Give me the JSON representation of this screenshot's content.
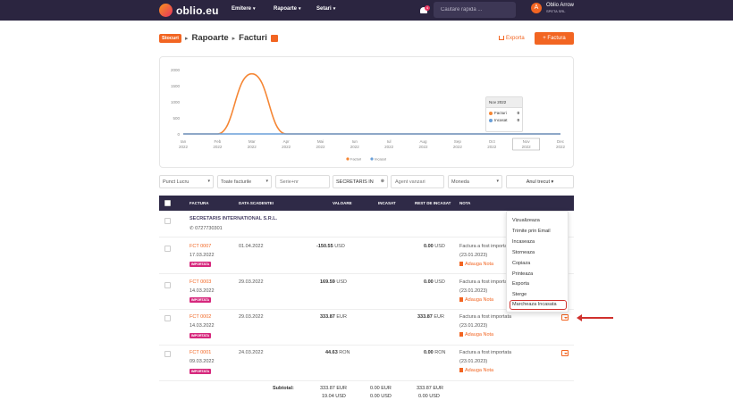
{
  "header": {
    "logo_text": "oblio.eu",
    "nav": [
      {
        "label": "Emitere"
      },
      {
        "label": "Rapoarte"
      },
      {
        "label": "Setari"
      }
    ],
    "notif_count": "4",
    "search_placeholder": "Cautare rapida ...",
    "user_initial": "A",
    "user_name": "Oblio Arrow",
    "user_company": "SPETA SRL"
  },
  "breadcrumb": {
    "badge": "Stocuri",
    "items": [
      "Rapoarte",
      "Facturi"
    ]
  },
  "actions": {
    "export_label": "Exporta",
    "new_label": "+ Factura"
  },
  "chart_data": {
    "type": "line",
    "categories": [
      "Ian 2022",
      "Feb 2022",
      "Mar 2022",
      "Apr 2022",
      "Mai 2022",
      "Iun 2022",
      "Iul 2022",
      "Aug 2022",
      "Sep 2022",
      "Oct 2022",
      "Nov 2022",
      "Dec 2022"
    ],
    "x_top": [
      "Ian",
      "Feb",
      "Mar",
      "Apr",
      "Mai",
      "Iun",
      "Iul",
      "Aug",
      "Sep",
      "Oct",
      "Nov",
      "Dec"
    ],
    "x_bottom": [
      "2022",
      "2022",
      "2022",
      "2022",
      "2022",
      "2022",
      "2022",
      "2022",
      "2022",
      "2022",
      "2022",
      "2022"
    ],
    "yticks": [
      "2000",
      "1500",
      "1000",
      "500",
      "0"
    ],
    "ylim": [
      0,
      2000
    ],
    "series": [
      {
        "name": "Facturi",
        "color": "#f58634",
        "values": [
          0,
          0,
          1870,
          0,
          0,
          0,
          0,
          0,
          0,
          0,
          0,
          0
        ]
      },
      {
        "name": "Incasat",
        "color": "#6a9fd8",
        "values": [
          0,
          0,
          0,
          0,
          0,
          0,
          0,
          0,
          0,
          0,
          0,
          0
        ]
      }
    ],
    "legend_position": "bottom-center",
    "tooltip": {
      "title": "Nov 2022",
      "rows": [
        {
          "name": "Facturi",
          "value": "0"
        },
        {
          "name": "Incasat",
          "value": "0"
        }
      ]
    }
  },
  "filters": {
    "punct": "Punct Lucru",
    "tipuri": "Toate facturile",
    "serie_placeholder": "Serie+nr",
    "client": "SECRETARIS IN",
    "agent_placeholder": "Agent vanzari",
    "moneda": "Moneda",
    "perioada": "Anul trecut"
  },
  "table": {
    "headers": [
      "FACTURA",
      "DATA SCADENTEI",
      "VALOARE",
      "INCASAT",
      "REST DE INCASAT",
      "NOTA"
    ],
    "client_name": "SECRETARIS INTERNATIONAL S.R.L.",
    "client_phone": "0727730301",
    "rows": [
      {
        "number": "FCT 0007",
        "date": "17.03.2022",
        "tag": "IMPORTATA",
        "due": "01.04.2022",
        "value": "-150.55",
        "currency": "USD",
        "incasat": "",
        "incasat_cur": "",
        "rest": "0.00",
        "rest_cur": "USD",
        "note1": "Factura a fost importata",
        "note2": "(23.01.2023)",
        "note_link": "Adauga Nota"
      },
      {
        "number": "FCT 0003",
        "date": "14.03.2022",
        "tag": "IMPORTATA",
        "due": "29.03.2022",
        "value": "169.59",
        "currency": "USD",
        "incasat": "",
        "incasat_cur": "",
        "rest": "0.00",
        "rest_cur": "USD",
        "note1": "Factura a fost importata",
        "note2": "(23.01.2023)",
        "note_link": "Adauga Nota"
      },
      {
        "number": "FCT 0002",
        "date": "14.03.2022",
        "tag": "IMPORTATA",
        "due": "29.03.2022",
        "value": "333.87",
        "currency": "EUR",
        "incasat": "",
        "incasat_cur": "",
        "rest": "333.87",
        "rest_cur": "EUR",
        "note1": "Factura a fost importata",
        "note2": "(23.01.2023)",
        "note_link": "Adauga Nota"
      },
      {
        "number": "FCT 0001",
        "date": "09.03.2022",
        "tag": "IMPORTATA",
        "due": "24.03.2022",
        "value": "44.63",
        "currency": "RON",
        "incasat": "",
        "incasat_cur": "",
        "rest": "0.00",
        "rest_cur": "RON",
        "note1": "Factura a fost importata",
        "note2": "(23.01.2023)",
        "note_link": "Adauga Nota"
      }
    ],
    "subtotal_label": "Subtotal:",
    "subtotal_lines": [
      {
        "value": "333.87 EUR",
        "incasat": "0.00 EUR",
        "rest": "333.87 EUR"
      },
      {
        "value": "19.04 USD",
        "incasat": "0.00 USD",
        "rest": "0.00 USD"
      }
    ]
  },
  "menu": {
    "items": [
      "Vizualizeaza",
      "Trimite prin Email",
      "Incaseaza",
      "Storneaza",
      "Copiaza",
      "Printeaza",
      "Exporta",
      "Sterge",
      "Marcheaza Incasata"
    ],
    "highlighted": "Marcheaza Incasata"
  }
}
